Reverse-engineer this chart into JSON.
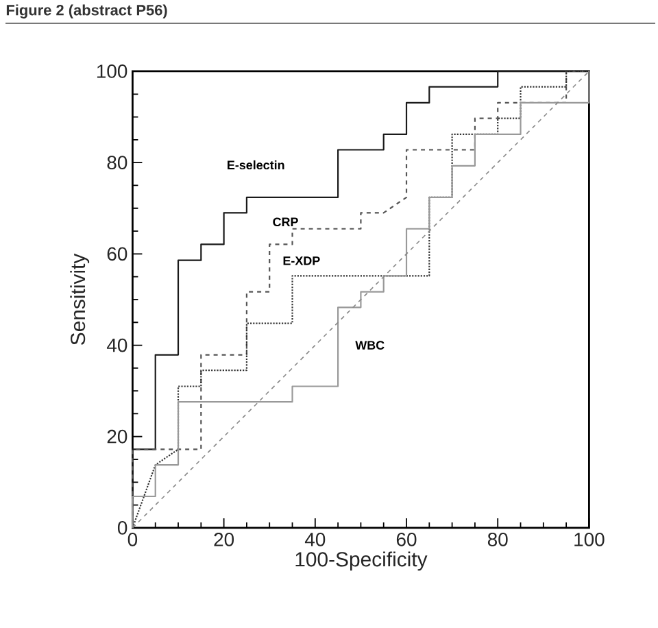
{
  "chart_data": {
    "type": "line",
    "title": "Figure 2 (abstract P56)",
    "xlabel": "100-Specificity",
    "ylabel": "Sensitivity",
    "xlim": [
      0,
      100
    ],
    "ylim": [
      0,
      100
    ],
    "xticks": [
      0,
      20,
      40,
      60,
      80,
      100
    ],
    "yticks": [
      0,
      20,
      40,
      60,
      80,
      100
    ],
    "grid": false,
    "marker": "none",
    "series": [
      {
        "name": "E-selectin",
        "color": "#1a1a1a",
        "line_style": "solid",
        "x": [
          0,
          0,
          5,
          5,
          10,
          10,
          15,
          15,
          20,
          20,
          25,
          25,
          45,
          45,
          55,
          55,
          60,
          60,
          65,
          65,
          80,
          80,
          100
        ],
        "values": [
          0,
          17.2,
          17.2,
          37.9,
          37.9,
          58.6,
          58.6,
          62.1,
          62.1,
          69,
          69,
          72.4,
          72.4,
          82.8,
          82.8,
          86.2,
          86.2,
          93.1,
          93.1,
          96.6,
          96.6,
          100,
          100
        ]
      },
      {
        "name": "CRP",
        "color": "#555555",
        "line_style": "dashed",
        "x": [
          0,
          0,
          15,
          15,
          25,
          25,
          30,
          30,
          35,
          35,
          50,
          50,
          55,
          60,
          60,
          75,
          75,
          80,
          80,
          95,
          95,
          100
        ],
        "values": [
          0,
          17.2,
          17.2,
          37.9,
          37.9,
          51.7,
          51.7,
          62.1,
          62.1,
          65.5,
          65.5,
          69,
          69,
          72.4,
          82.8,
          82.8,
          89.7,
          89.7,
          93.1,
          93.1,
          100,
          100
        ]
      },
      {
        "name": "E-XDP",
        "color": "#333333",
        "line_style": "dotted",
        "x": [
          0,
          5,
          10,
          10,
          15,
          15,
          25,
          25,
          35,
          35,
          65,
          65,
          70,
          70,
          80,
          80,
          85,
          85,
          95,
          95,
          100
        ],
        "values": [
          0,
          13.8,
          17.2,
          31,
          31,
          34.5,
          34.5,
          44.8,
          44.8,
          55.2,
          55.2,
          72.4,
          72.4,
          86.2,
          86.2,
          89.7,
          89.7,
          96.6,
          96.6,
          100,
          100
        ]
      },
      {
        "name": "WBC",
        "color": "#999999",
        "line_style": "solid",
        "x": [
          0,
          0,
          5,
          5,
          10,
          10,
          35,
          35,
          45,
          45,
          50,
          50,
          55,
          55,
          60,
          60,
          65,
          65,
          70,
          70,
          75,
          75,
          85,
          85,
          100,
          100
        ],
        "values": [
          0,
          6.9,
          6.9,
          13.8,
          13.8,
          27.6,
          27.6,
          31,
          31,
          48.3,
          48.3,
          51.7,
          51.7,
          55.2,
          55.2,
          65.5,
          65.5,
          72.4,
          72.4,
          79.3,
          79.3,
          86.2,
          86.2,
          93.1,
          93.1,
          100
        ]
      },
      {
        "color": "#888888",
        "line_style": "dashed",
        "x": [
          0,
          100
        ],
        "values": [
          0,
          100
        ]
      }
    ]
  }
}
